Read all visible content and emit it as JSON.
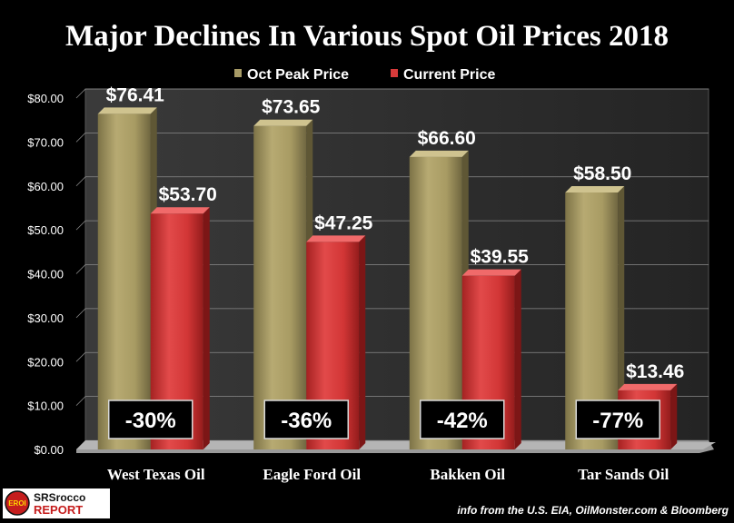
{
  "chart_data": {
    "type": "bar",
    "title": "Major Declines In Various Spot Oil Prices 2018",
    "categories": [
      "West Texas Oil",
      "Eagle Ford Oil",
      "Bakken Oil",
      "Tar Sands Oil"
    ],
    "series": [
      {
        "name": "Oct Peak Price",
        "values": [
          76.41,
          73.65,
          66.6,
          58.5
        ],
        "labels": [
          "$76.41",
          "$73.65",
          "$66.60",
          "$58.50"
        ]
      },
      {
        "name": "Current Price",
        "values": [
          53.7,
          47.25,
          39.55,
          13.46
        ],
        "labels": [
          "$53.70",
          "$47.25",
          "$39.55",
          "$13.46"
        ]
      }
    ],
    "declines": [
      "-30%",
      "-36%",
      "-42%",
      "-77%"
    ],
    "ylim": [
      0,
      80
    ],
    "yticks": [
      0,
      10,
      20,
      30,
      40,
      50,
      60,
      70,
      80
    ],
    "ytick_labels": [
      "$0.00",
      "$10.00",
      "$20.00",
      "$30.00",
      "$40.00",
      "$50.00",
      "$60.00",
      "$70.00",
      "$80.00"
    ],
    "xlabel": "",
    "ylabel": "",
    "legend_position": "top-center",
    "grid": true,
    "colors": {
      "Oct Peak Price": "#a79b66",
      "Current Price": "#d83a3a",
      "background": "#000000",
      "plot_wall": "#2a2a2a",
      "gridline": "#8a8a8a"
    }
  },
  "logo": {
    "badge": "EROI",
    "line1": "SRSrocco",
    "line2": "REPORT"
  },
  "source_note": "info from the U.S. EIA, OilMonster.com & Bloomberg"
}
